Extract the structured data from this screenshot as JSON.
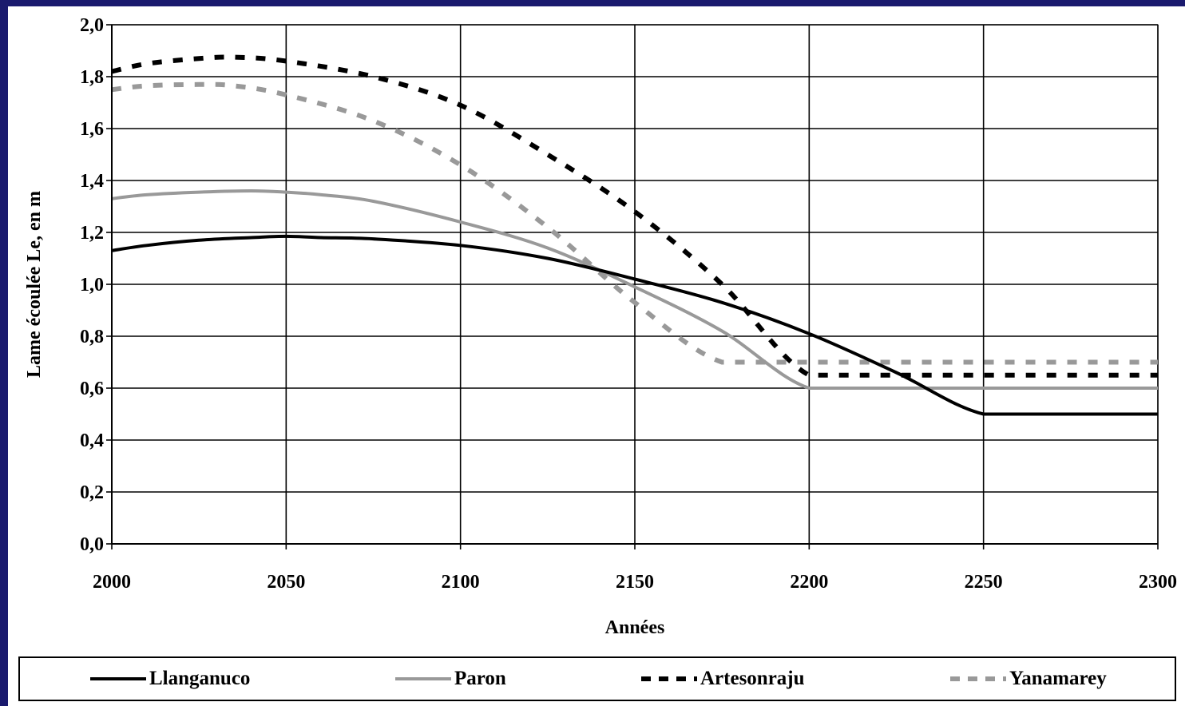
{
  "chart_data": {
    "type": "line",
    "xlabel": "Années",
    "ylabel": "Lame écoulée Le, en m",
    "xlim": [
      2000,
      2300
    ],
    "ylim": [
      0,
      2
    ],
    "x_ticks": [
      2000,
      2050,
      2100,
      2150,
      2200,
      2250,
      2300
    ],
    "y_ticks": [
      0,
      0.2,
      0.4,
      0.6,
      0.8,
      1.0,
      1.2,
      1.4,
      1.6,
      1.8,
      2.0
    ],
    "y_tick_labels": [
      "0,0",
      "0,2",
      "0,4",
      "0,6",
      "0,8",
      "1,0",
      "1,2",
      "1,4",
      "1,6",
      "1,8",
      "2,0"
    ],
    "grid": true,
    "legend_position": "bottom",
    "series": [
      {
        "name": "Llanganuco",
        "color": "#000000",
        "style": "solid",
        "x": [
          2000,
          2010,
          2025,
          2040,
          2050,
          2060,
          2075,
          2100,
          2125,
          2150,
          2175,
          2200,
          2225,
          2250,
          2275,
          2300
        ],
        "y": [
          1.13,
          1.15,
          1.17,
          1.18,
          1.185,
          1.18,
          1.175,
          1.15,
          1.1,
          1.02,
          0.93,
          0.81,
          0.66,
          0.5,
          0.5,
          0.5
        ]
      },
      {
        "name": "Paron",
        "color": "#999999",
        "style": "solid",
        "x": [
          2000,
          2010,
          2025,
          2040,
          2050,
          2060,
          2075,
          2100,
          2125,
          2150,
          2175,
          2200,
          2225,
          2250,
          2275,
          2300
        ],
        "y": [
          1.33,
          1.345,
          1.355,
          1.36,
          1.355,
          1.345,
          1.32,
          1.24,
          1.14,
          0.99,
          0.82,
          0.6,
          0.6,
          0.6,
          0.6,
          0.6
        ]
      },
      {
        "name": "Artesonraju",
        "color": "#000000",
        "style": "dashed",
        "x": [
          2000,
          2010,
          2025,
          2035,
          2050,
          2075,
          2100,
          2125,
          2150,
          2175,
          2200,
          2225,
          2250,
          2275,
          2300
        ],
        "y": [
          1.82,
          1.85,
          1.87,
          1.875,
          1.86,
          1.8,
          1.69,
          1.5,
          1.28,
          1.0,
          0.65,
          0.65,
          0.65,
          0.65,
          0.65
        ]
      },
      {
        "name": "Yanamarey",
        "color": "#999999",
        "style": "dashed",
        "x": [
          2000,
          2010,
          2025,
          2035,
          2050,
          2075,
          2100,
          2125,
          2150,
          2175,
          2200,
          2225,
          2250,
          2275,
          2300
        ],
        "y": [
          1.75,
          1.765,
          1.77,
          1.765,
          1.73,
          1.63,
          1.46,
          1.22,
          0.93,
          0.7,
          0.7,
          0.7,
          0.7,
          0.7,
          0.7
        ]
      }
    ]
  },
  "legend_items": [
    "Llanganuco",
    "Paron",
    "Artesonraju",
    "Yanamarey"
  ]
}
